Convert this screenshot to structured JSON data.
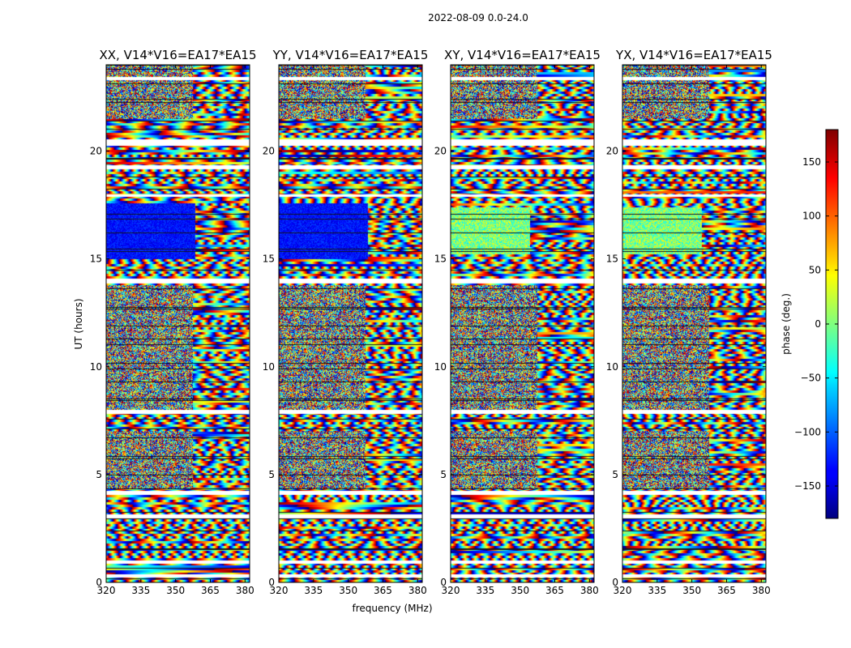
{
  "suptitle": "2022-08-09 0.0-24.0",
  "chart_data": {
    "type": "heatmap",
    "panels": [
      {
        "title": "XX, V14*V16=EA17*EA15",
        "pol": "XX"
      },
      {
        "title": "YY, V14*V16=EA17*EA15",
        "pol": "YY"
      },
      {
        "title": "XY, V14*V16=EA17*EA15",
        "pol": "XY"
      },
      {
        "title": "YX, V14*V16=EA17*EA15",
        "pol": "YX"
      }
    ],
    "x_ticks": [
      "320",
      "335",
      "350",
      "365",
      "380"
    ],
    "x_tick_values": [
      320,
      335,
      350,
      365,
      380
    ],
    "xlim": [
      320,
      382
    ],
    "xlabel": "frequency (MHz)",
    "y_ticks": [
      "0",
      "5",
      "10",
      "15",
      "20"
    ],
    "y_tick_values": [
      0,
      5,
      10,
      15,
      20
    ],
    "ylim": [
      0,
      24
    ],
    "ylabel": "UT (hours)",
    "colorbar": {
      "label": "phase (deg.)",
      "ticks": [
        "150",
        "100",
        "50",
        "0",
        "−50",
        "−100",
        "−150"
      ],
      "tick_values": [
        150,
        100,
        50,
        0,
        -50,
        -100,
        -150
      ],
      "range": [
        -180,
        180
      ],
      "colormap": "jet"
    },
    "flagged_ut_bands": [
      [
        0.2,
        0.35
      ],
      [
        0.85,
        1.0
      ],
      [
        2.95,
        3.15
      ],
      [
        4.05,
        4.25
      ],
      [
        7.8,
        8.0
      ],
      [
        13.85,
        14.1
      ],
      [
        17.9,
        18.0
      ],
      [
        19.15,
        19.35
      ],
      [
        20.25,
        20.55
      ],
      [
        23.3,
        23.45
      ]
    ]
  }
}
